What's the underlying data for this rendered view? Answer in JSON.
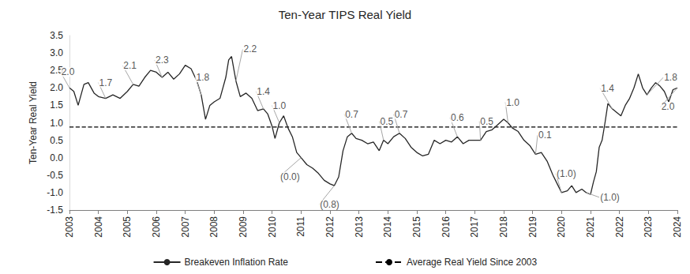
{
  "chart_data": {
    "type": "line",
    "title": "Ten-Year TIPS Real Yield",
    "y_label": "Ten-Year Real Yield",
    "x": [
      2003.0,
      2003.15,
      2003.3,
      2003.5,
      2003.65,
      2003.85,
      2004.0,
      2004.25,
      2004.5,
      2004.75,
      2005.0,
      2005.2,
      2005.4,
      2005.6,
      2005.8,
      2006.0,
      2006.2,
      2006.4,
      2006.6,
      2006.8,
      2007.0,
      2007.2,
      2007.4,
      2007.55,
      2007.7,
      2007.85,
      2008.0,
      2008.2,
      2008.4,
      2008.5,
      2008.6,
      2008.75,
      2008.9,
      2009.1,
      2009.3,
      2009.5,
      2009.7,
      2009.85,
      2010.0,
      2010.1,
      2010.25,
      2010.4,
      2010.55,
      2010.7,
      2010.85,
      2011.0,
      2011.2,
      2011.4,
      2011.6,
      2011.8,
      2012.0,
      2012.15,
      2012.3,
      2012.45,
      2012.6,
      2012.75,
      2012.9,
      2013.1,
      2013.3,
      2013.5,
      2013.7,
      2013.85,
      2014.0,
      2014.2,
      2014.4,
      2014.6,
      2014.8,
      2015.0,
      2015.2,
      2015.4,
      2015.6,
      2015.8,
      2016.0,
      2016.2,
      2016.4,
      2016.6,
      2016.8,
      2017.0,
      2017.2,
      2017.4,
      2017.6,
      2017.8,
      2018.0,
      2018.15,
      2018.3,
      2018.5,
      2018.7,
      2018.9,
      2019.1,
      2019.3,
      2019.5,
      2019.7,
      2019.85,
      2020.0,
      2020.2,
      2020.35,
      2020.5,
      2020.7,
      2020.85,
      2021.0,
      2021.1,
      2021.2,
      2021.3,
      2021.4,
      2021.5,
      2021.6,
      2021.75,
      2021.9,
      2022.05,
      2022.2,
      2022.35,
      2022.5,
      2022.65,
      2022.8,
      2022.95,
      2023.1,
      2023.25,
      2023.4,
      2023.55,
      2023.7,
      2023.85,
      2024.0
    ],
    "series": [
      {
        "name": "Breakeven Inflation Rate",
        "color": "#262626",
        "line_style": "solid",
        "values": [
          2.0,
          1.9,
          1.5,
          2.1,
          2.15,
          1.85,
          1.75,
          1.7,
          1.8,
          1.7,
          1.9,
          2.1,
          2.05,
          2.3,
          2.5,
          2.45,
          2.3,
          2.45,
          2.25,
          2.4,
          2.65,
          2.55,
          2.2,
          1.8,
          1.1,
          1.5,
          1.6,
          1.7,
          2.3,
          2.8,
          2.9,
          2.2,
          1.75,
          1.85,
          1.7,
          1.35,
          1.4,
          1.25,
          0.9,
          0.55,
          1.0,
          1.2,
          0.85,
          0.6,
          0.15,
          0.0,
          -0.2,
          -0.3,
          -0.45,
          -0.65,
          -0.75,
          -0.8,
          -0.55,
          0.2,
          0.6,
          0.7,
          0.55,
          0.5,
          0.4,
          0.45,
          0.2,
          0.5,
          0.4,
          0.6,
          0.7,
          0.55,
          0.3,
          0.15,
          0.05,
          0.1,
          0.5,
          0.4,
          0.5,
          0.45,
          0.6,
          0.4,
          0.5,
          0.5,
          0.5,
          0.75,
          0.8,
          0.95,
          1.1,
          1.0,
          0.85,
          0.75,
          0.5,
          0.35,
          0.1,
          0.15,
          -0.1,
          -0.5,
          -0.75,
          -1.0,
          -0.95,
          -0.8,
          -1.0,
          -0.9,
          -1.0,
          -1.05,
          -0.7,
          -0.4,
          0.3,
          0.5,
          1.0,
          1.55,
          1.4,
          1.3,
          1.2,
          1.5,
          1.7,
          2.0,
          2.4,
          2.0,
          1.8,
          2.0,
          2.15,
          2.05,
          1.9,
          1.6,
          1.95,
          2.0
        ]
      }
    ],
    "reference_line": {
      "name": "Average Real Yield Since 2003",
      "value": 0.88,
      "color": "#000000",
      "line_style": "dashed"
    },
    "annotations": [
      {
        "x": 2003.0,
        "y": 2.0,
        "label": "2.0"
      },
      {
        "x": 2004.25,
        "y": 1.7,
        "label": "1.7"
      },
      {
        "x": 2005.2,
        "y": 2.1,
        "label": "2.1"
      },
      {
        "x": 2006.2,
        "y": 2.3,
        "label": "2.3"
      },
      {
        "x": 2007.55,
        "y": 1.8,
        "label": "1.8"
      },
      {
        "x": 2008.75,
        "y": 2.2,
        "label": "2.2"
      },
      {
        "x": 2009.7,
        "y": 1.4,
        "label": "1.4"
      },
      {
        "x": 2010.25,
        "y": 1.0,
        "label": "1.0"
      },
      {
        "x": 2011.0,
        "y": 0.0,
        "label": "(0.0)"
      },
      {
        "x": 2012.15,
        "y": -0.8,
        "label": "(0.8)"
      },
      {
        "x": 2012.75,
        "y": 0.7,
        "label": "0.7"
      },
      {
        "x": 2013.85,
        "y": 0.5,
        "label": "0.5"
      },
      {
        "x": 2014.4,
        "y": 0.7,
        "label": "0.7"
      },
      {
        "x": 2016.4,
        "y": 0.6,
        "label": "0.6"
      },
      {
        "x": 2017.2,
        "y": 0.5,
        "label": "0.5"
      },
      {
        "x": 2018.15,
        "y": 1.0,
        "label": "1.0"
      },
      {
        "x": 2019.1,
        "y": 0.1,
        "label": "0.1"
      },
      {
        "x": 2020.0,
        "y": -1.0,
        "label": "(1.0)"
      },
      {
        "x": 2020.85,
        "y": -1.0,
        "label": "(1.0)"
      },
      {
        "x": 2021.75,
        "y": 1.4,
        "label": "1.4"
      },
      {
        "x": 2022.95,
        "y": 1.8,
        "label": "1.8"
      },
      {
        "x": 2024.0,
        "y": 2.0,
        "label": "2.0"
      }
    ],
    "xlim": [
      2003,
      2024
    ],
    "xticks": [
      2003,
      2004,
      2005,
      2006,
      2007,
      2008,
      2009,
      2010,
      2011,
      2012,
      2013,
      2014,
      2015,
      2016,
      2017,
      2018,
      2019,
      2020,
      2021,
      2022,
      2023,
      2024
    ],
    "ylim": [
      -1.5,
      3.5
    ],
    "yticks": [
      {
        "value": -1.5,
        "label": "-1.5"
      },
      {
        "value": -1,
        "label": "-1.0"
      },
      {
        "value": -0.5,
        "label": "-0.5"
      },
      {
        "value": 0,
        "label": "0.0"
      },
      {
        "value": 0.5,
        "label": "0.5"
      },
      {
        "value": 1,
        "label": "1.0"
      },
      {
        "value": 1.5,
        "label": "1.5"
      },
      {
        "value": 2,
        "label": "2.0"
      },
      {
        "value": 2.5,
        "label": "2.5"
      },
      {
        "value": 3,
        "label": "3.0"
      },
      {
        "value": 3.5,
        "label": "3.5"
      }
    ],
    "grid": false,
    "legend": "bottom"
  }
}
